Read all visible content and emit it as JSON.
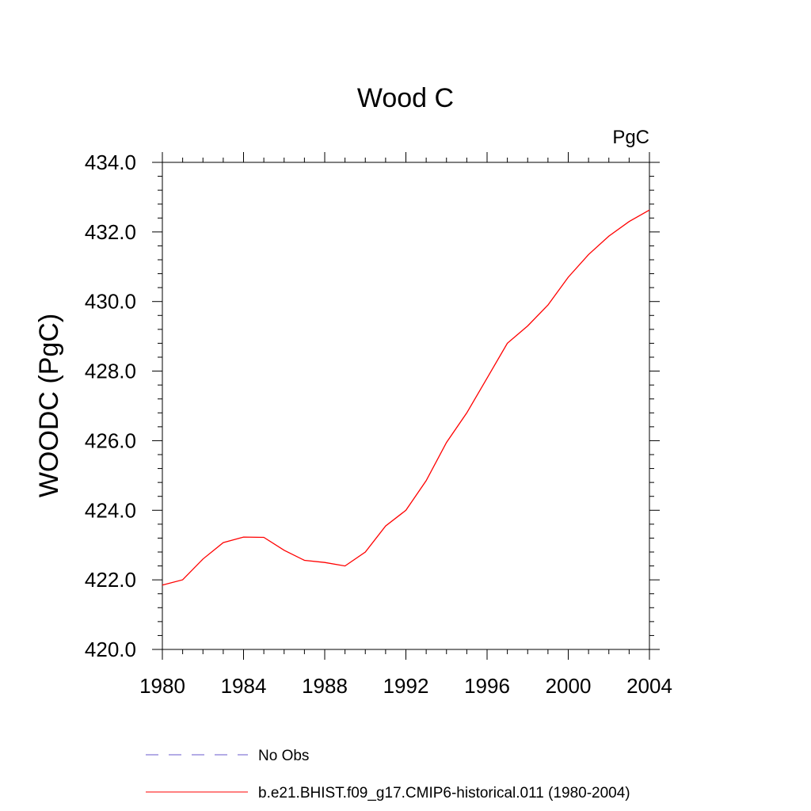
{
  "chart_data": {
    "type": "line",
    "title": "Wood C",
    "units": "PgC",
    "xlabel": "",
    "ylabel": "WOODC  (PgC)",
    "xlim": [
      1980,
      2004
    ],
    "ylim": [
      420.0,
      434.0
    ],
    "x_ticks": [
      "1980",
      "1984",
      "1988",
      "1992",
      "1996",
      "2000",
      "2004"
    ],
    "y_ticks": [
      "420.0",
      "422.0",
      "424.0",
      "426.0",
      "428.0",
      "430.0",
      "432.0",
      "434.0"
    ],
    "grid": false,
    "legend_position": "bottom",
    "series": [
      {
        "name": "No Obs",
        "color": "#6a5acd",
        "style": "dashed",
        "x": [],
        "values": []
      },
      {
        "name": "b.e21.BHIST.f09_g17.CMIP6-historical.011 (1980-2004)",
        "color": "#ff0000",
        "style": "solid",
        "x": [
          1980,
          1981,
          1982,
          1983,
          1984,
          1985,
          1986,
          1987,
          1988,
          1989,
          1990,
          1991,
          1992,
          1993,
          1994,
          1995,
          1996,
          1997,
          1998,
          1999,
          2000,
          2001,
          2002,
          2003,
          2004
        ],
        "values": [
          421.85,
          422.0,
          422.6,
          423.07,
          423.23,
          423.22,
          422.85,
          422.56,
          422.5,
          422.4,
          422.8,
          423.55,
          424.0,
          424.85,
          425.95,
          426.8,
          427.8,
          428.8,
          429.3,
          429.9,
          430.7,
          431.35,
          431.88,
          432.3,
          432.63
        ]
      }
    ]
  }
}
